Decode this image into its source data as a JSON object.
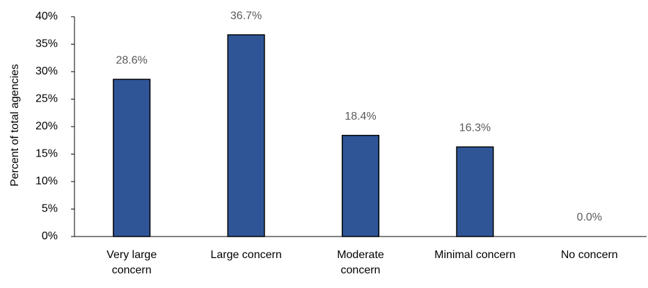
{
  "chart_data": {
    "type": "bar",
    "y_label": "Percent of total agencies",
    "categories": [
      "Very large\nconcern",
      "Large concern",
      "Moderate\nconcern",
      "Minimal concern",
      "No concern"
    ],
    "values": [
      28.6,
      36.7,
      18.4,
      16.3,
      0.0
    ],
    "value_labels": [
      "28.6%",
      "36.7%",
      "18.4%",
      "16.3%",
      "0.0%"
    ],
    "color": "#2f5597",
    "ylim": [
      0,
      40
    ],
    "yticks": [
      {
        "value": 0,
        "label": "0%"
      },
      {
        "value": 5,
        "label": "5%"
      },
      {
        "value": 10,
        "label": "10%"
      },
      {
        "value": 15,
        "label": "15%"
      },
      {
        "value": 20,
        "label": "20%"
      },
      {
        "value": 25,
        "label": "25%"
      },
      {
        "value": 30,
        "label": "30%"
      },
      {
        "value": 35,
        "label": "35%"
      },
      {
        "value": 40,
        "label": "40%"
      }
    ],
    "grid": false
  }
}
